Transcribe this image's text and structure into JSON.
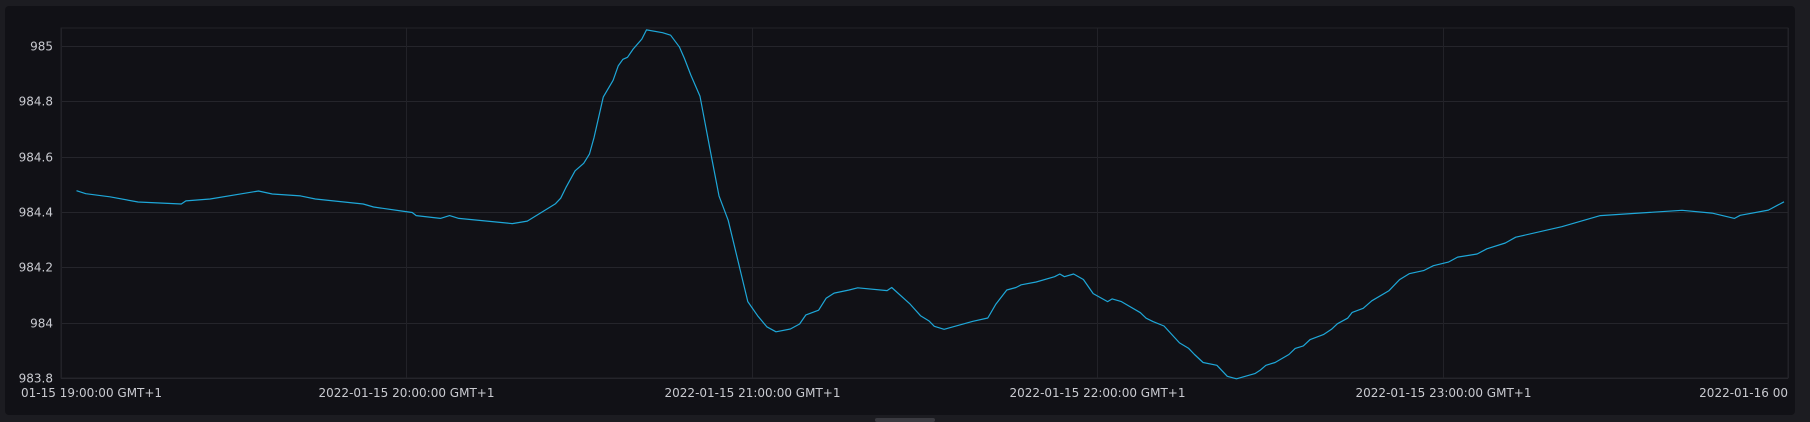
{
  "chart_data": {
    "type": "line",
    "title": "",
    "xlabel": "",
    "ylabel": "",
    "date": "2022-01-15",
    "xlim": [
      "19:00:00",
      "24:00:00"
    ],
    "ylim": [
      983.8,
      985.065
    ],
    "grid": true,
    "line_color": "#1ea7d8",
    "y_ticks": [
      {
        "value": 985,
        "label": "985"
      },
      {
        "value": 984.8,
        "label": "984.8"
      },
      {
        "value": 984.6,
        "label": "984.6"
      },
      {
        "value": 984.4,
        "label": "984.4"
      },
      {
        "value": 984.2,
        "label": "984.2"
      },
      {
        "value": 984,
        "label": "984"
      },
      {
        "value": 983.8,
        "label": "983.8"
      }
    ],
    "x_ticks": [
      {
        "time": "19:00:00",
        "label": "01-15 19:00:00 GMT+1",
        "align": "left"
      },
      {
        "time": "20:00:00",
        "label": "2022-01-15 20:00:00 GMT+1",
        "align": "center"
      },
      {
        "time": "21:00:00",
        "label": "2022-01-15 21:00:00 GMT+1",
        "align": "center"
      },
      {
        "time": "22:00:00",
        "label": "2022-01-15 22:00:00 GMT+1",
        "align": "center"
      },
      {
        "time": "23:00:00",
        "label": "2022-01-15 23:00:00 GMT+1",
        "align": "center"
      },
      {
        "time": "24:00:00",
        "label": "2022-01-16 00",
        "align": "right"
      }
    ],
    "series": [
      {
        "x": [
          "19:02:42",
          "19:04:18",
          "19:08:30",
          "19:13:24",
          "19:20:54",
          "19:21:42",
          "19:25:54",
          "19:34:18",
          "19:36:42",
          "19:41:36",
          "19:44:12",
          "19:52:30",
          "19:54:18",
          "19:59:00",
          "20:01:00",
          "20:01:42",
          "20:05:54",
          "20:07:30",
          "20:09:06",
          "20:18:24",
          "20:21:00",
          "20:25:54",
          "20:26:48",
          "20:27:42",
          "20:29:18",
          "20:30:48",
          "20:31:48",
          "20:32:36",
          "20:34:12",
          "20:35:54",
          "20:36:48",
          "20:37:36",
          "20:38:24",
          "20:39:24",
          "20:40:54",
          "20:41:42",
          "20:44:30",
          "20:45:54",
          "20:47:24",
          "20:48:18",
          "20:49:24",
          "20:51:00",
          "20:52:54",
          "20:54:18",
          "20:55:54",
          "20:59:18",
          "21:01:00",
          "21:02:36",
          "21:04:12",
          "21:06:42",
          "21:08:18",
          "21:09:24",
          "21:11:36",
          "21:12:54",
          "21:14:18",
          "21:16:54",
          "21:18:24",
          "21:23:30",
          "21:24:18",
          "21:27:30",
          "21:29:18",
          "21:30:48",
          "21:31:42",
          "21:33:24",
          "21:38:24",
          "21:41:00",
          "21:42:24",
          "21:44:18",
          "21:45:54",
          "21:46:48",
          "21:49:24",
          "21:52:36",
          "21:53:30",
          "21:54:18",
          "21:55:54",
          "21:57:36",
          "21:59:18",
          "22:01:48",
          "22:02:36",
          "22:04:12",
          "22:07:30",
          "22:08:30",
          "22:09:42",
          "22:11:36",
          "22:14:18",
          "22:15:54",
          "22:16:54",
          "22:18:24",
          "22:20:48",
          "22:22:36",
          "22:24:12",
          "22:27:24",
          "22:28:18",
          "22:29:18",
          "22:30:54",
          "22:33:18",
          "22:34:24",
          "22:35:48",
          "22:37:00",
          "22:39:18",
          "22:40:42",
          "22:41:42",
          "22:43:30",
          "22:44:18",
          "22:46:12",
          "22:47:42",
          "22:50:42",
          "22:52:30",
          "22:54:12",
          "22:56:42",
          "22:58:24",
          "23:01:00",
          "23:02:36",
          "23:06:00",
          "23:07:42",
          "23:10:54",
          "23:12:42",
          "23:20:42",
          "23:27:24",
          "23:41:36",
          "23:46:48",
          "23:50:42",
          "23:51:42",
          "23:56:36",
          "23:59:18"
        ],
        "y": [
          984.477,
          984.466,
          984.455,
          984.436,
          984.429,
          984.44,
          984.447,
          984.476,
          984.465,
          984.458,
          984.447,
          984.429,
          984.418,
          984.404,
          984.398,
          984.387,
          984.377,
          984.387,
          984.377,
          984.358,
          984.367,
          984.43,
          984.45,
          984.488,
          984.549,
          984.576,
          984.61,
          984.67,
          984.816,
          984.876,
          984.928,
          984.952,
          984.959,
          984.989,
          985.025,
          985.058,
          985.048,
          985.039,
          984.997,
          984.955,
          984.895,
          984.818,
          984.61,
          984.458,
          984.37,
          984.076,
          984.025,
          983.985,
          983.967,
          983.977,
          983.995,
          984.028,
          984.045,
          984.088,
          984.107,
          984.118,
          984.126,
          984.116,
          984.127,
          984.067,
          984.025,
          984.006,
          983.987,
          983.976,
          984.005,
          984.017,
          984.067,
          984.118,
          984.127,
          984.137,
          984.147,
          984.166,
          984.176,
          984.166,
          984.176,
          984.156,
          984.105,
          984.076,
          984.086,
          984.076,
          984.036,
          984.016,
          984.004,
          983.988,
          983.927,
          983.907,
          983.885,
          983.856,
          983.846,
          983.806,
          983.797,
          983.816,
          983.828,
          983.846,
          983.856,
          983.885,
          983.907,
          983.916,
          983.939,
          983.957,
          983.976,
          983.996,
          984.016,
          984.037,
          984.052,
          984.079,
          984.116,
          984.155,
          984.177,
          984.188,
          984.206,
          984.219,
          984.237,
          984.248,
          984.267,
          984.288,
          984.309,
          984.347,
          984.387,
          984.406,
          984.396,
          984.377,
          984.388,
          984.407,
          984.437
        ]
      }
    ]
  }
}
